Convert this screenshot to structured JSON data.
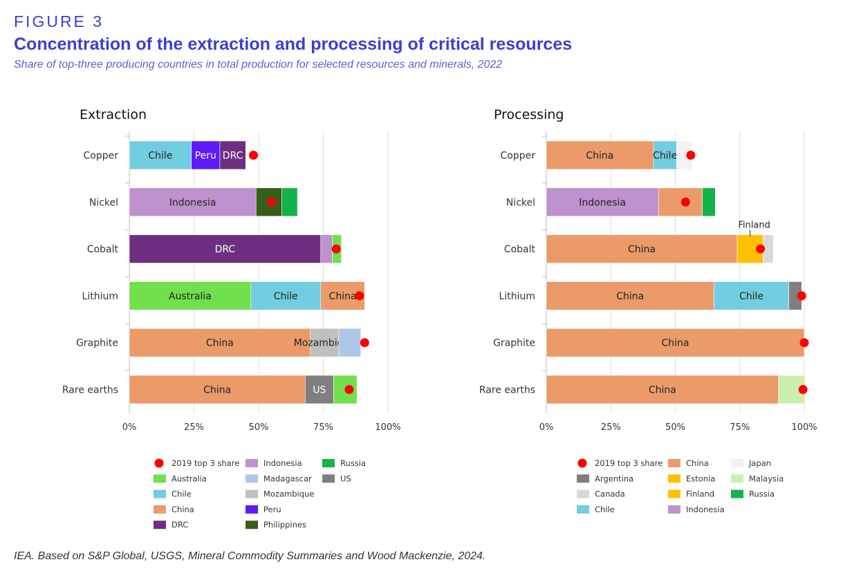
{
  "header": {
    "figure_label": "FIGURE 3",
    "title": "Concentration of the extraction and processing of critical resources",
    "subtitle": "Share of top-three producing countries in total production for selected resources and minerals, 2022"
  },
  "source": "IEA. Based on S&P Global, USGS, Mineral Commodity Summaries and Wood Mackenzie, 2024.",
  "chart_data": [
    {
      "type": "bar",
      "orientation": "horizontal",
      "stacked": true,
      "title": "Extraction",
      "categories": [
        "Copper",
        "Nickel",
        "Cobalt",
        "Lithium",
        "Graphite",
        "Rare earths"
      ],
      "xlim": [
        0,
        100
      ],
      "x_ticks": [
        "0%",
        "25%",
        "50%",
        "75%",
        "100%"
      ],
      "grid": true,
      "bars": [
        {
          "category": "Copper",
          "segments": [
            {
              "country": "Chile",
              "value": 24,
              "label": "Chile"
            },
            {
              "country": "Peru",
              "value": 11,
              "label": "Peru"
            },
            {
              "country": "DRC",
              "value": 10,
              "label": "DRC"
            }
          ],
          "marker_2019": 48
        },
        {
          "category": "Nickel",
          "segments": [
            {
              "country": "Indonesia",
              "value": 49,
              "label": "Indonesia"
            },
            {
              "country": "Philippines",
              "value": 10,
              "label": ""
            },
            {
              "country": "Russia",
              "value": 6,
              "label": ""
            }
          ],
          "marker_2019": 55
        },
        {
          "category": "Cobalt",
          "segments": [
            {
              "country": "DRC",
              "value": 74,
              "label": "DRC"
            },
            {
              "country": "Indonesia",
              "value": 4.5,
              "label": ""
            },
            {
              "country": "Australia",
              "value": 3.5,
              "label": ""
            }
          ],
          "marker_2019": 80
        },
        {
          "category": "Lithium",
          "segments": [
            {
              "country": "Australia",
              "value": 47,
              "label": "Australia"
            },
            {
              "country": "Chile",
              "value": 27,
              "label": "Chile"
            },
            {
              "country": "China",
              "value": 17,
              "label": "China"
            }
          ],
          "marker_2019": 89
        },
        {
          "category": "Graphite",
          "segments": [
            {
              "country": "China",
              "value": 70,
              "label": "China"
            },
            {
              "country": "Mozambique",
              "value": 11,
              "label": "Mozambique"
            },
            {
              "country": "Madagascar",
              "value": 8.5,
              "label": ""
            }
          ],
          "marker_2019": 91
        },
        {
          "category": "Rare earths",
          "segments": [
            {
              "country": "China",
              "value": 68,
              "label": "China"
            },
            {
              "country": "US",
              "value": 11,
              "label": "US"
            },
            {
              "country": "Australia",
              "value": 9,
              "label": ""
            }
          ],
          "marker_2019": 85
        }
      ],
      "legend": [
        {
          "name": "2019 top 3 share",
          "marker": "dot",
          "color": "#ff0000"
        },
        {
          "name": "Australia",
          "color": "#72df4d"
        },
        {
          "name": "Chile",
          "color": "#72cde0"
        },
        {
          "name": "China",
          "color": "#eb9b69"
        },
        {
          "name": "DRC",
          "color": "#6e2f81"
        },
        {
          "name": "Indonesia",
          "color": "#be91cf"
        },
        {
          "name": "Madagascar",
          "color": "#aec7e8"
        },
        {
          "name": "Mozambique",
          "color": "#bfbfbf"
        },
        {
          "name": "Peru",
          "color": "#5e1af7"
        },
        {
          "name": "Philippines",
          "color": "#375e1a"
        },
        {
          "name": "Russia",
          "color": "#12b34a"
        },
        {
          "name": "US",
          "color": "#7f7f7f"
        }
      ]
    },
    {
      "type": "bar",
      "orientation": "horizontal",
      "stacked": true,
      "title": "Processing",
      "categories": [
        "Copper",
        "Nickel",
        "Cobalt",
        "Lithium",
        "Graphite",
        "Rare earths"
      ],
      "xlim": [
        0,
        100
      ],
      "x_ticks": [
        "0%",
        "25%",
        "50%",
        "75%",
        "100%"
      ],
      "grid": true,
      "bars": [
        {
          "category": "Copper",
          "segments": [
            {
              "country": "China",
              "value": 41.5,
              "label": "China"
            },
            {
              "country": "Chile",
              "value": 9,
              "label": "Chile"
            },
            {
              "country": "Japan",
              "value": 6,
              "label": ""
            }
          ],
          "marker_2019": 56
        },
        {
          "category": "Nickel",
          "segments": [
            {
              "country": "Indonesia",
              "value": 43.5,
              "label": "Indonesia"
            },
            {
              "country": "China",
              "value": 17,
              "label": ""
            },
            {
              "country": "Russia",
              "value": 5,
              "label": ""
            }
          ],
          "marker_2019": 54
        },
        {
          "category": "Cobalt",
          "segments": [
            {
              "country": "China",
              "value": 74,
              "label": "China"
            },
            {
              "country": "Finland",
              "value": 10,
              "label": ""
            },
            {
              "country": "Canada",
              "value": 4,
              "label": ""
            }
          ],
          "marker_2019": 83,
          "annotation": "Finland"
        },
        {
          "category": "Lithium",
          "segments": [
            {
              "country": "China",
              "value": 65,
              "label": "China"
            },
            {
              "country": "Chile",
              "value": 29,
              "label": "Chile"
            },
            {
              "country": "Argentina",
              "value": 5,
              "label": ""
            }
          ],
          "marker_2019": 99
        },
        {
          "category": "Graphite",
          "segments": [
            {
              "country": "China",
              "value": 100,
              "label": "China"
            }
          ],
          "marker_2019": 100
        },
        {
          "category": "Rare earths",
          "segments": [
            {
              "country": "China",
              "value": 90,
              "label": "China"
            },
            {
              "country": "Malaysia",
              "value": 9.5,
              "label": ""
            },
            {
              "country": "Estonia",
              "value": 0.5,
              "label": ""
            }
          ],
          "marker_2019": 99.5
        }
      ],
      "legend": [
        {
          "name": "2019 top 3 share",
          "marker": "dot",
          "color": "#ff0000"
        },
        {
          "name": "Argentina",
          "color": "#7f7f7f"
        },
        {
          "name": "Canada",
          "color": "#d9d9d9"
        },
        {
          "name": "Chile",
          "color": "#72cde0"
        },
        {
          "name": "China",
          "color": "#eb9b69"
        },
        {
          "name": "Estonia",
          "color": "#ffc000"
        },
        {
          "name": "Finland",
          "color": "#ffc000"
        },
        {
          "name": "Indonesia",
          "color": "#be91cf"
        },
        {
          "name": "Japan",
          "color": "#f2f2f2"
        },
        {
          "name": "Malaysia",
          "color": "#c9f0b0"
        },
        {
          "name": "Russia",
          "color": "#12b34a"
        }
      ]
    }
  ]
}
